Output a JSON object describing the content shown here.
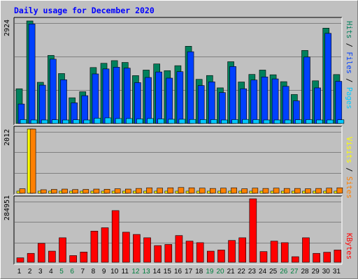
{
  "title": "Daily usage for December 2020",
  "chart_data": {
    "type": "bar",
    "title": "Daily usage for December 2020",
    "categories": [
      "1",
      "2",
      "3",
      "4",
      "5",
      "6",
      "7",
      "8",
      "9",
      "10",
      "11",
      "12",
      "13",
      "14",
      "15",
      "16",
      "17",
      "18",
      "19",
      "20",
      "21",
      "22",
      "23",
      "24",
      "25",
      "26",
      "27",
      "28",
      "29",
      "30",
      "31"
    ],
    "weekend_days": [
      "5",
      "6",
      "12",
      "13",
      "19",
      "20",
      "26",
      "27"
    ],
    "colors": {
      "title": "#0000ff",
      "weekday": "#000000",
      "weekend": "#008040",
      "hits": "#00805c",
      "files": "#0040ff",
      "pages": "#00c8ff",
      "visits": "#ffff00",
      "sites": "#ff8000",
      "kbytes": "#ff0000",
      "panel": "#c0c0c0",
      "grid": "#808080"
    },
    "panels": [
      {
        "name": "hits-files-pages",
        "ymax": 2924,
        "ymax_label": "2924",
        "legend": [
          "Pages",
          "Files",
          "Hits"
        ],
        "series": [
          {
            "name": "Hits",
            "values": [
              990,
              2924,
              1174,
              1941,
              1424,
              733,
              905,
              1595,
              1716,
              1792,
              1740,
              1365,
              1523,
              1698,
              1506,
              1648,
              2202,
              1258,
              1368,
              1016,
              1761,
              1183,
              1399,
              1523,
              1389,
              1192,
              826,
              2083,
              1217,
              2719,
              1395
            ]
          },
          {
            "name": "Files",
            "values": [
              555,
              2837,
              1093,
              1834,
              1247,
              588,
              793,
              1413,
              1555,
              1604,
              1578,
              1165,
              1312,
              1469,
              1293,
              1478,
              2046,
              1082,
              1187,
              882,
              1624,
              990,
              1239,
              1327,
              1271,
              1059,
              645,
              1894,
              1015,
              2570,
              1203
            ]
          },
          {
            "name": "Pages",
            "values": [
              110,
              100,
              100,
              105,
              95,
              105,
              95,
              150,
              160,
              140,
              140,
              130,
              140,
              130,
              120,
              120,
              115,
              110,
              110,
              100,
              110,
              115,
              110,
              100,
              100,
              100,
              105,
              110,
              100,
              100,
              105
            ]
          }
        ]
      },
      {
        "name": "visits-sites",
        "ymax": 2012,
        "ymax_label": "2012",
        "legend": [
          "Sites",
          "Visits"
        ],
        "series": [
          {
            "name": "Visits",
            "values": [
              40,
              2012,
              40,
              40,
              40,
              40,
              40,
              40,
              40,
              40,
              40,
              40,
              40,
              40,
              40,
              40,
              40,
              40,
              40,
              40,
              40,
              40,
              40,
              40,
              40,
              40,
              40,
              40,
              40,
              40,
              40
            ]
          },
          {
            "name": "Sites",
            "values": [
              140,
              2012,
              110,
              120,
              130,
              115,
              120,
              130,
              125,
              140,
              130,
              150,
              170,
              160,
              170,
              180,
              170,
              160,
              150,
              160,
              170,
              140,
              160,
              150,
              160,
              150,
              150,
              140,
              150,
              160,
              170
            ]
          }
        ]
      },
      {
        "name": "kbytes",
        "ymax": 284951,
        "ymax_label": "284951",
        "legend": [
          "KBytes"
        ],
        "series": [
          {
            "name": "KBytes",
            "values": [
              20000,
              40000,
              85000,
              50000,
              110000,
              30000,
              46000,
              140000,
              155000,
              232000,
              135000,
              125000,
              110000,
              75000,
              80000,
              120000,
              95000,
              88000,
              50000,
              55000,
              98000,
              110000,
              284951,
              48000,
              95000,
              88000,
              25000,
              110000,
              40000,
              45000,
              55000
            ]
          }
        ]
      }
    ]
  }
}
